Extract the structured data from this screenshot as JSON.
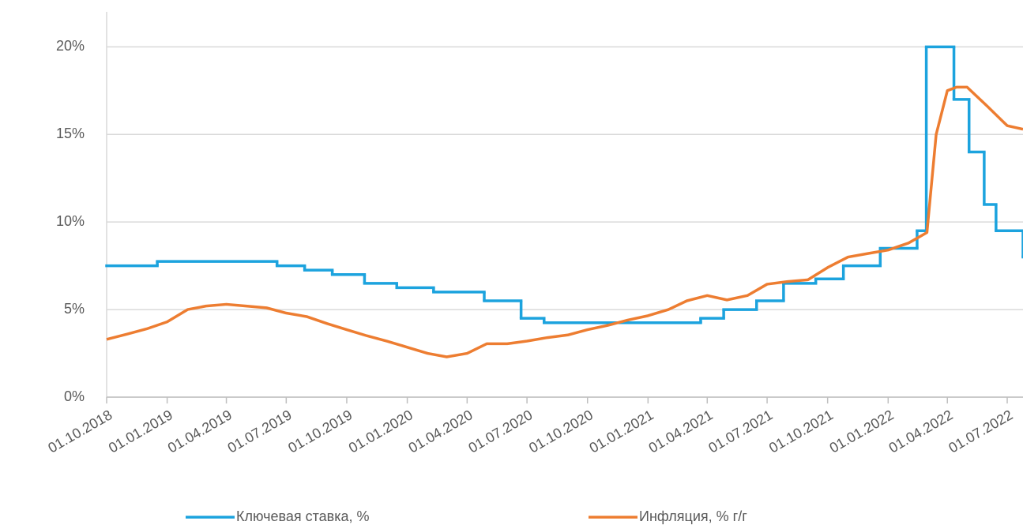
{
  "chart_data": {
    "type": "line",
    "xticks": [
      "01.10.2018",
      "01.01.2019",
      "01.04.2019",
      "01.07.2019",
      "01.10.2019",
      "01.01.2020",
      "01.04.2020",
      "01.07.2020",
      "01.10.2020",
      "01.01.2021",
      "01.04.2021",
      "01.07.2021",
      "01.10.2021",
      "01.01.2022",
      "01.04.2022",
      "01.07.2022"
    ],
    "xlim": [
      "01.10.2018",
      "25.07.2022"
    ],
    "ylim": [
      0,
      22
    ],
    "yticks": [
      {
        "value": 0,
        "label": "0%"
      },
      {
        "value": 5,
        "label": "5%"
      },
      {
        "value": 10,
        "label": "10%"
      },
      {
        "value": 15,
        "label": "15%"
      },
      {
        "value": 20,
        "label": "20%"
      }
    ],
    "grid": true,
    "legend": "bottom",
    "series": [
      {
        "name": "Ключевая ставка, %",
        "color": "#1ca3de",
        "step": true,
        "x": [
          "01.10.2018",
          "17.12.2018",
          "17.06.2019",
          "29.07.2019",
          "09.09.2019",
          "28.10.2019",
          "16.12.2019",
          "10.02.2020",
          "27.04.2020",
          "22.06.2020",
          "27.07.2020",
          "22.03.2021",
          "26.04.2021",
          "15.06.2021",
          "26.07.2021",
          "13.09.2021",
          "25.10.2021",
          "20.12.2021",
          "14.02.2022",
          "28.02.2022",
          "11.04.2022",
          "04.05.2022",
          "27.05.2022",
          "14.06.2022",
          "25.07.2022"
        ],
        "values": [
          7.5,
          7.75,
          7.5,
          7.25,
          7,
          6.5,
          6.25,
          6,
          5.5,
          4.5,
          4.25,
          4.5,
          5,
          5.5,
          6.5,
          6.75,
          7.5,
          8.5,
          9.5,
          20,
          17,
          14,
          11,
          9.5,
          8
        ]
      },
      {
        "name": "Инфляция, % г/г",
        "color": "#ed7d31",
        "step": false,
        "x": [
          "01.10.2018",
          "01.11.2018",
          "01.12.2018",
          "01.01.2019",
          "01.02.2019",
          "01.03.2019",
          "01.04.2019",
          "01.05.2019",
          "01.06.2019",
          "01.07.2019",
          "01.08.2019",
          "01.09.2019",
          "01.10.2019",
          "01.11.2019",
          "01.12.2019",
          "01.01.2020",
          "01.02.2020",
          "01.03.2020",
          "01.04.2020",
          "01.05.2020",
          "01.06.2020",
          "01.07.2020",
          "01.08.2020",
          "01.09.2020",
          "01.10.2020",
          "01.11.2020",
          "01.12.2020",
          "01.01.2021",
          "01.02.2021",
          "01.03.2021",
          "01.04.2021",
          "01.05.2021",
          "01.06.2021",
          "01.07.2021",
          "01.08.2021",
          "01.09.2021",
          "01.10.2021",
          "01.11.2021",
          "01.12.2021",
          "01.01.2022",
          "01.02.2022",
          "01.03.2022",
          "15.03.2022",
          "01.04.2022",
          "15.04.2022",
          "01.05.2022",
          "01.06.2022",
          "01.07.2022",
          "25.07.2022"
        ],
        "values": [
          3.3,
          3.6,
          3.9,
          4.3,
          5.0,
          5.2,
          5.3,
          5.2,
          5.1,
          4.8,
          4.6,
          4.2,
          3.85,
          3.5,
          3.2,
          2.85,
          2.5,
          2.3,
          2.5,
          3.05,
          3.05,
          3.2,
          3.4,
          3.55,
          3.85,
          4.1,
          4.4,
          4.65,
          5.0,
          5.5,
          5.8,
          5.55,
          5.8,
          6.45,
          6.6,
          6.7,
          7.4,
          8.0,
          8.2,
          8.4,
          8.8,
          9.4,
          15.0,
          17.5,
          17.7,
          17.7,
          16.6,
          15.5,
          15.3
        ]
      }
    ]
  }
}
